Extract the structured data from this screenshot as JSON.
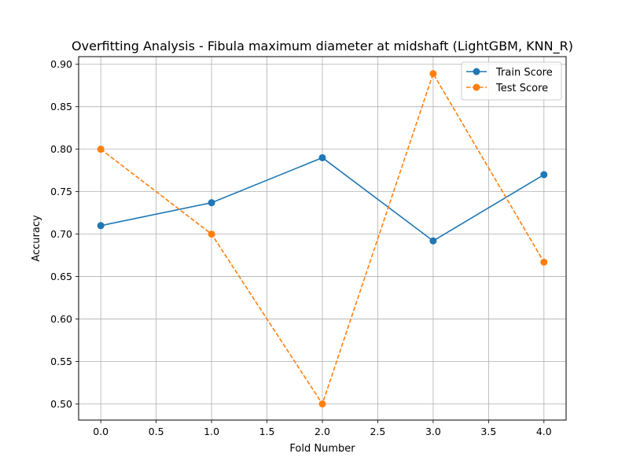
{
  "chart_data": {
    "type": "line",
    "title": "Overfitting Analysis - Fibula maximum diameter at midshaft (LightGBM, KNN_R)",
    "xlabel": "Fold Number",
    "ylabel": "Accuracy",
    "x": [
      0,
      1,
      2,
      3,
      4
    ],
    "xlim": [
      -0.2,
      4.2
    ],
    "ylim": [
      0.481,
      0.909
    ],
    "xticks": [
      0.0,
      0.5,
      1.0,
      1.5,
      2.0,
      2.5,
      3.0,
      3.5,
      4.0
    ],
    "xtick_labels": [
      "0.0",
      "0.5",
      "1.0",
      "1.5",
      "2.0",
      "2.5",
      "3.0",
      "3.5",
      "4.0"
    ],
    "yticks": [
      0.5,
      0.55,
      0.6,
      0.65,
      0.7,
      0.75,
      0.8,
      0.85,
      0.9
    ],
    "ytick_labels": [
      "0.50",
      "0.55",
      "0.60",
      "0.65",
      "0.70",
      "0.75",
      "0.80",
      "0.85",
      "0.90"
    ],
    "grid": true,
    "legend_position": "top-right",
    "series": [
      {
        "name": "Train Score",
        "values": [
          0.71,
          0.737,
          0.79,
          0.692,
          0.77
        ],
        "color": "#1f77b4",
        "linestyle": "solid",
        "marker": "circle"
      },
      {
        "name": "Test Score",
        "values": [
          0.8,
          0.7,
          0.5,
          0.889,
          0.667
        ],
        "color": "#ff7f0e",
        "linestyle": "dashed",
        "marker": "circle"
      }
    ]
  }
}
